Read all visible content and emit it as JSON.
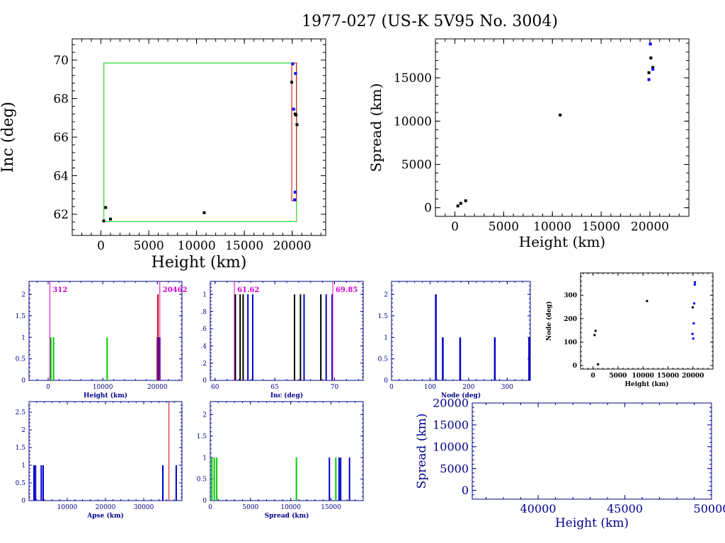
{
  "page_title": "1977-027 (US-K 5V95 No. 3004)",
  "colors": {
    "black": "#000000",
    "navy": "#00008b",
    "blue": "#0000ff",
    "green": "#00cc00",
    "red": "#cc0000",
    "magenta": "#d000d0",
    "dark_red": "#8b0000"
  },
  "chart_data": [
    {
      "id": "inc-vs-height",
      "type": "scatter",
      "xlabel": "Height (km)",
      "ylabel": "Inc (deg)",
      "xlim": [
        -3000,
        23500
      ],
      "ylim": [
        60.9,
        71.1
      ],
      "xticks": [
        0,
        5000,
        10000,
        15000,
        20000
      ],
      "yticks": [
        62,
        64,
        66,
        68,
        70
      ],
      "boxes": [
        {
          "name": "green-range-box",
          "color": "#00cc00",
          "x": [
            312,
            20450
          ],
          "y": [
            61.62,
            69.85
          ]
        },
        {
          "name": "red-range-box",
          "color": "#cc0000",
          "x": [
            19950,
            20450
          ],
          "y": [
            62.7,
            69.85
          ]
        }
      ],
      "series": [
        {
          "name": "black",
          "color": "#000000",
          "points": [
            [
              300,
              61.65
            ],
            [
              500,
              62.35
            ],
            [
              1000,
              61.75
            ],
            [
              10800,
              62.08
            ],
            [
              19950,
              68.85
            ],
            [
              20300,
              67.2
            ],
            [
              20400,
              67.15
            ],
            [
              20500,
              66.65
            ]
          ]
        },
        {
          "name": "blue",
          "color": "#0000ff",
          "points": [
            [
              20050,
              69.8
            ],
            [
              20350,
              69.3
            ],
            [
              20150,
              67.45
            ],
            [
              20300,
              63.15
            ],
            [
              20250,
              62.75
            ]
          ]
        }
      ]
    },
    {
      "id": "spread-vs-height",
      "type": "scatter",
      "xlabel": "Height (km)",
      "ylabel": "Spread (km)",
      "xlim": [
        -2000,
        24000
      ],
      "ylim": [
        -1000,
        19500
      ],
      "xticks": [
        0,
        5000,
        10000,
        15000,
        20000
      ],
      "yticks": [
        0,
        5000,
        10000,
        15000
      ],
      "series": [
        {
          "name": "black",
          "color": "#000000",
          "points": [
            [
              300,
              200
            ],
            [
              600,
              500
            ],
            [
              1100,
              800
            ],
            [
              10800,
              10700
            ],
            [
              19900,
              15600
            ],
            [
              20100,
              17300
            ],
            [
              20300,
              16200
            ]
          ]
        },
        {
          "name": "blue",
          "color": "#0000ff",
          "points": [
            [
              19900,
              14800
            ],
            [
              20050,
              18900
            ],
            [
              20300,
              16000
            ]
          ]
        }
      ]
    },
    {
      "id": "height-histogram",
      "type": "bar",
      "xlabel": "Height (km)",
      "xlim": [
        -3500,
        24500
      ],
      "ylim": [
        0,
        2.3
      ],
      "xticks": [
        0,
        10000,
        20000
      ],
      "yticks": [
        0,
        0.5,
        1,
        1.5,
        2
      ],
      "ytick_labels": [
        "0",
        "0.5",
        "1",
        "1.5",
        "2"
      ],
      "bars": [
        {
          "x": 500,
          "value": 1,
          "color": "#00cc00"
        },
        {
          "x": 1000,
          "value": 1,
          "color": "#00cc00"
        },
        {
          "x": 10800,
          "value": 1,
          "color": "#00cc00"
        },
        {
          "x": 20000,
          "value": 1,
          "color": "#0000cc"
        },
        {
          "x": 20150,
          "value": 1,
          "color": "#0000cc"
        },
        {
          "x": 20250,
          "value": 1,
          "color": "#0000cc"
        },
        {
          "x": 20350,
          "value": 1,
          "color": "#0000cc"
        },
        {
          "x": 20450,
          "value": 1,
          "color": "#0000cc"
        },
        {
          "x": 20100,
          "value": 2,
          "color": "#cc0000"
        }
      ],
      "markers": [
        {
          "x": 312,
          "label": "312",
          "color": "#d000d0",
          "label_side": "right"
        },
        {
          "x": 20450,
          "label": "20462",
          "color": "#d000d0",
          "label_side": "right"
        }
      ]
    },
    {
      "id": "inc-histogram",
      "type": "bar",
      "xlabel": "Inc (deg)",
      "xlim": [
        59.6,
        72.4
      ],
      "ylim": [
        0,
        1.15
      ],
      "xticks": [
        60,
        65,
        70
      ],
      "yticks": [
        0,
        0.2,
        0.4,
        0.6,
        0.8,
        1
      ],
      "ytick_labels": [
        "0",
        ".2",
        ".4",
        ".6",
        ".8",
        "1"
      ],
      "bars": [
        {
          "x": 61.7,
          "value": 1,
          "color": "#000000"
        },
        {
          "x": 62.1,
          "value": 1,
          "color": "#000000"
        },
        {
          "x": 62.35,
          "value": 1,
          "color": "#000000"
        },
        {
          "x": 62.75,
          "value": 1,
          "color": "#0000cc"
        },
        {
          "x": 63.15,
          "value": 1,
          "color": "#0000cc"
        },
        {
          "x": 66.65,
          "value": 1,
          "color": "#000000"
        },
        {
          "x": 67.15,
          "value": 1,
          "color": "#000000"
        },
        {
          "x": 67.45,
          "value": 1,
          "color": "#0000cc"
        },
        {
          "x": 68.85,
          "value": 1,
          "color": "#000000"
        },
        {
          "x": 69.3,
          "value": 1,
          "color": "#0000cc"
        },
        {
          "x": 69.8,
          "value": 1,
          "color": "#0000cc"
        }
      ],
      "markers": [
        {
          "x": 61.62,
          "label": "61.62",
          "color": "#d000d0",
          "label_side": "right"
        },
        {
          "x": 69.85,
          "label": "69.85",
          "color": "#d000d0",
          "label_side": "right"
        }
      ]
    },
    {
      "id": "node-histogram",
      "type": "bar",
      "xlabel": "Node (deg)",
      "xlim": [
        0,
        360
      ],
      "ylim": [
        0,
        2.3
      ],
      "xticks": [
        0,
        100,
        200,
        300
      ],
      "yticks": [
        0,
        0.5,
        1,
        1.5,
        2
      ],
      "ytick_labels": [
        "0",
        "0.5",
        "1",
        "1.5",
        "2"
      ],
      "bars": [
        {
          "x": 115,
          "value": 2,
          "color": "#0000cc"
        },
        {
          "x": 133,
          "value": 1,
          "color": "#0000cc"
        },
        {
          "x": 178,
          "value": 1,
          "color": "#0000cc"
        },
        {
          "x": 268,
          "value": 1,
          "color": "#0000cc"
        },
        {
          "x": 357,
          "value": 1,
          "color": "#0000cc"
        }
      ]
    },
    {
      "id": "node-vs-height",
      "type": "scatter",
      "xlabel": "Height (km)",
      "ylabel": "Node (deg)",
      "xlim": [
        -2500,
        24000
      ],
      "ylim": [
        -15,
        395
      ],
      "xticks": [
        0,
        5000,
        10000,
        15000,
        20000
      ],
      "yticks": [
        0,
        100,
        200,
        300
      ],
      "series": [
        {
          "name": "black",
          "color": "#000000",
          "points": [
            [
              300,
              130
            ],
            [
              500,
              148
            ],
            [
              1000,
              5
            ],
            [
              10800,
              275
            ],
            [
              19950,
              248
            ]
          ]
        },
        {
          "name": "blue",
          "color": "#0000ff",
          "points": [
            [
              19900,
              135
            ],
            [
              20050,
              115
            ],
            [
              20150,
              180
            ],
            [
              20250,
              265
            ],
            [
              20350,
              345
            ],
            [
              20400,
              355
            ]
          ]
        }
      ]
    },
    {
      "id": "apse-histogram",
      "type": "bar",
      "xlabel": "Apse (km)",
      "xlim": [
        0,
        40000
      ],
      "ylim": [
        0,
        2.8
      ],
      "xticks": [
        10000,
        20000,
        30000
      ],
      "yticks": [
        0,
        0.5,
        1,
        1.5,
        2,
        2.5
      ],
      "ytick_labels": [
        "0",
        "0.5",
        "1",
        "1.5",
        "2",
        "2.5"
      ],
      "bars": [
        {
          "x": 1300,
          "value": 1,
          "color": "#0000cc"
        },
        {
          "x": 1700,
          "value": 1,
          "color": "#0000cc"
        },
        {
          "x": 3200,
          "value": 1,
          "color": "#0000cc"
        },
        {
          "x": 3700,
          "value": 1,
          "color": "#0000cc"
        },
        {
          "x": 35000,
          "value": 1,
          "color": "#0000cc"
        },
        {
          "x": 38500,
          "value": 1,
          "color": "#0000cc"
        }
      ],
      "markers": [
        {
          "x": 36600,
          "label": "",
          "color": "#cc0000",
          "label_side": "none"
        }
      ]
    },
    {
      "id": "spread-histogram",
      "type": "bar",
      "xlabel": "Spread (km)",
      "xlim": [
        0,
        19000
      ],
      "ylim": [
        0,
        2.3
      ],
      "xticks": [
        0,
        5000,
        10000,
        15000
      ],
      "yticks": [
        0,
        0.5,
        1,
        1.5,
        2
      ],
      "ytick_labels": [
        "0",
        "0.5",
        "1",
        "1.5",
        "2"
      ],
      "bars": [
        {
          "x": 200,
          "value": 1,
          "color": "#00cc00"
        },
        {
          "x": 500,
          "value": 1,
          "color": "#00cc00"
        },
        {
          "x": 800,
          "value": 1,
          "color": "#00cc00"
        },
        {
          "x": 10700,
          "value": 1,
          "color": "#00cc00"
        },
        {
          "x": 14800,
          "value": 1,
          "color": "#0000cc"
        },
        {
          "x": 15600,
          "value": 1,
          "color": "#00cc00"
        },
        {
          "x": 16000,
          "value": 1,
          "color": "#0000cc"
        },
        {
          "x": 16200,
          "value": 1,
          "color": "#0000cc"
        },
        {
          "x": 17300,
          "value": 1,
          "color": "#0000cc"
        }
      ]
    },
    {
      "id": "spread-vs-height-far",
      "type": "scatter",
      "xlabel": "Height (km)",
      "ylabel": "Spread (km)",
      "xlim": [
        36200,
        50000
      ],
      "ylim": [
        -2000,
        20000
      ],
      "xticks": [
        40000,
        45000,
        50000
      ],
      "yticks": [
        0,
        5000,
        10000,
        15000,
        20000
      ],
      "series": []
    }
  ]
}
